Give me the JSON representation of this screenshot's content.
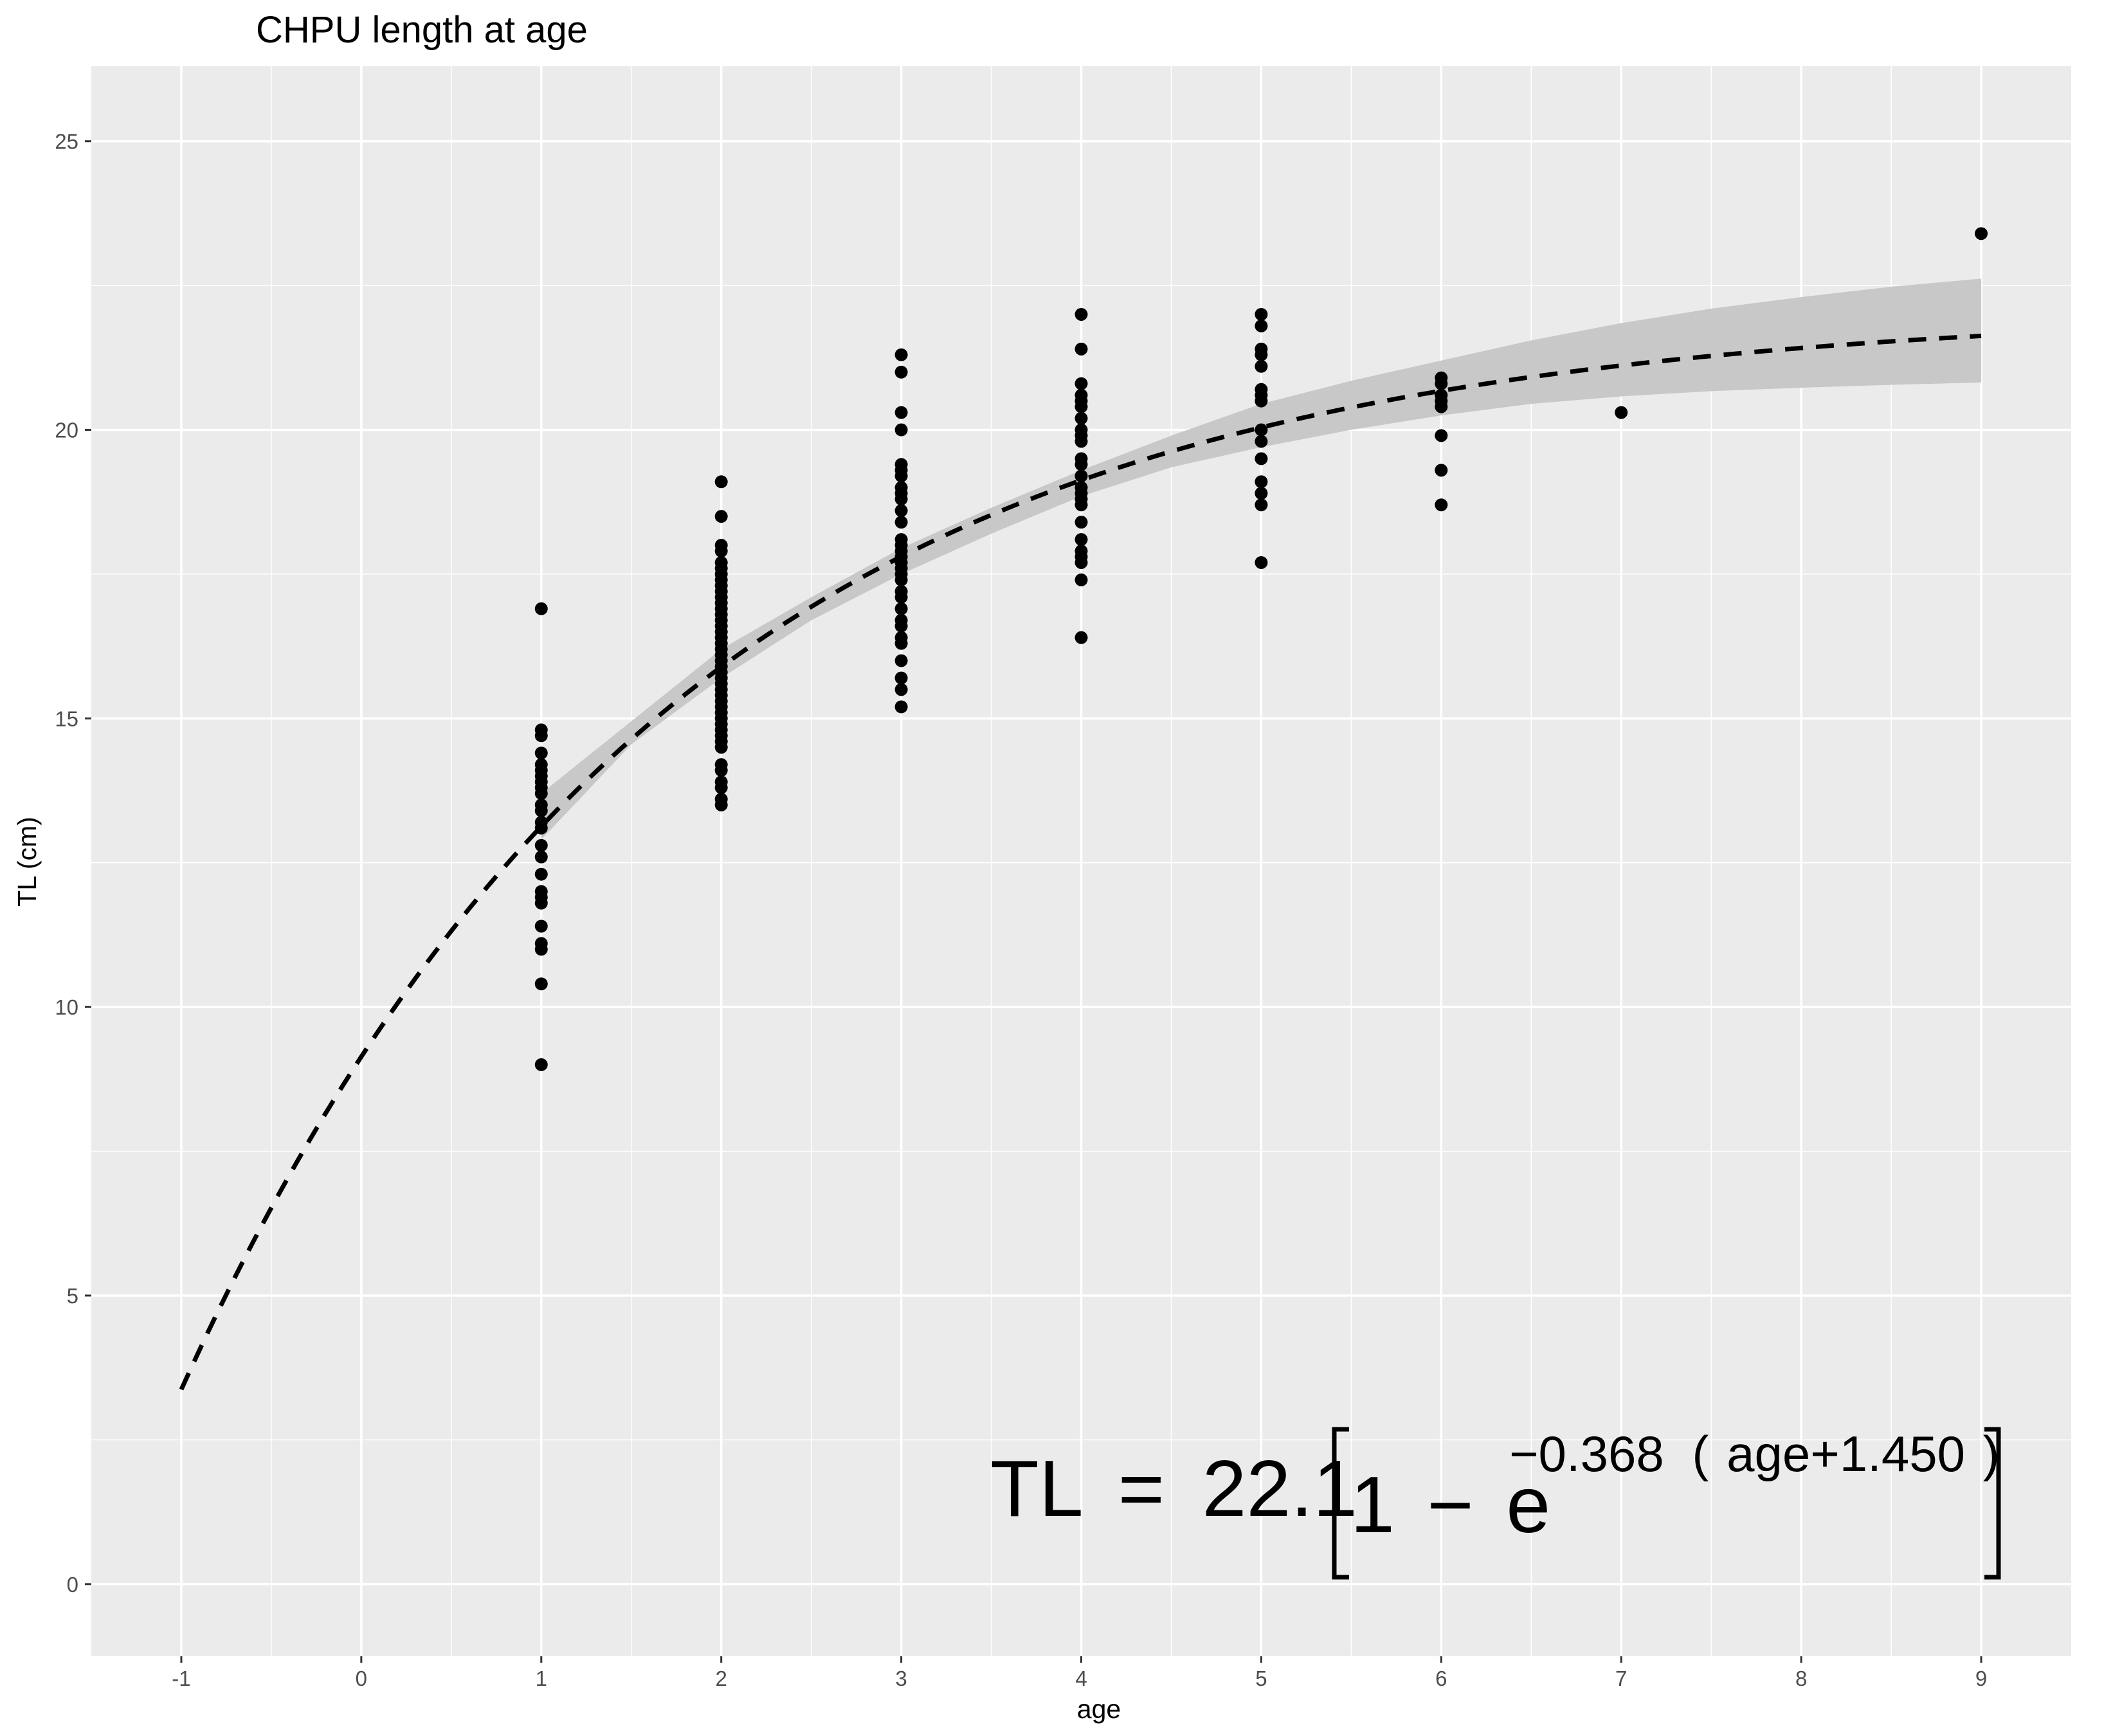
{
  "chart_data": {
    "type": "scatter",
    "title": "CHPU length at age",
    "xlabel": "age",
    "ylabel": "TL (cm)",
    "xlim": [
      -1.5,
      9.5
    ],
    "ylim": [
      -1.25,
      26.3
    ],
    "x_ticks": [
      -1,
      0,
      1,
      2,
      3,
      4,
      5,
      6,
      7,
      8,
      9
    ],
    "x_tick_labels": [
      "-1",
      "0",
      "1",
      "2",
      "3",
      "4",
      "5",
      "6",
      "7",
      "8",
      "9"
    ],
    "y_ticks": [
      0,
      5,
      10,
      15,
      20,
      25
    ],
    "y_tick_labels": [
      "0",
      "5",
      "10",
      "15",
      "20",
      "25"
    ],
    "grid": true,
    "colors": {
      "panel": "#ebebeb",
      "grid": "#ffffff",
      "points": "#000000",
      "band": "#c8c8c8",
      "curve": "#000000"
    },
    "fit": {
      "model": "von Bertalanffy",
      "Linf": 22.1,
      "K": 0.368,
      "t0": -1.45,
      "curve_range": [
        -1,
        9
      ],
      "ci_range": [
        1,
        9
      ],
      "ci_lower": [
        [
          1,
          12.9
        ],
        [
          1.5,
          14.55
        ],
        [
          2,
          15.7
        ],
        [
          2.5,
          16.7
        ],
        [
          3,
          17.5
        ],
        [
          3.5,
          18.2
        ],
        [
          4,
          18.85
        ],
        [
          4.5,
          19.35
        ],
        [
          5,
          19.7
        ],
        [
          5.5,
          20.0
        ],
        [
          6,
          20.25
        ],
        [
          6.5,
          20.45
        ],
        [
          7,
          20.58
        ],
        [
          7.5,
          20.67
        ],
        [
          8,
          20.73
        ],
        [
          8.5,
          20.78
        ],
        [
          9,
          20.82
        ]
      ],
      "ci_upper": [
        [
          1,
          13.7
        ],
        [
          1.5,
          14.95
        ],
        [
          2,
          16.2
        ],
        [
          2.5,
          17.1
        ],
        [
          3,
          17.95
        ],
        [
          3.5,
          18.65
        ],
        [
          4,
          19.3
        ],
        [
          4.5,
          19.9
        ],
        [
          5,
          20.45
        ],
        [
          5.5,
          20.85
        ],
        [
          6,
          21.2
        ],
        [
          6.5,
          21.55
        ],
        [
          7,
          21.85
        ],
        [
          7.5,
          22.1
        ],
        [
          8,
          22.3
        ],
        [
          8.5,
          22.48
        ],
        [
          9,
          22.62
        ]
      ]
    },
    "equation": {
      "lhs": "TL",
      "eq": "=",
      "linf": "22.1",
      "one": "1",
      "minus": "−",
      "e": "e",
      "exp_coef": "−0.368",
      "exp_open": "(",
      "exp_body": "age+1.450",
      "exp_close": ")"
    },
    "points": [
      [
        1,
        16.9
      ],
      [
        1,
        14.8
      ],
      [
        1,
        14.7
      ],
      [
        1,
        14.4
      ],
      [
        1,
        14.2
      ],
      [
        1,
        14.1
      ],
      [
        1,
        14.0
      ],
      [
        1,
        13.9
      ],
      [
        1,
        13.8
      ],
      [
        1,
        13.7
      ],
      [
        1,
        13.5
      ],
      [
        1,
        13.4
      ],
      [
        1,
        13.2
      ],
      [
        1,
        13.1
      ],
      [
        1,
        12.8
      ],
      [
        1,
        12.6
      ],
      [
        1,
        12.3
      ],
      [
        1,
        12.0
      ],
      [
        1,
        11.9
      ],
      [
        1,
        11.8
      ],
      [
        1,
        11.4
      ],
      [
        1,
        11.1
      ],
      [
        1,
        11.0
      ],
      [
        1,
        10.4
      ],
      [
        1,
        9.0
      ],
      [
        2,
        19.1
      ],
      [
        2,
        18.5
      ],
      [
        2,
        18.0
      ],
      [
        2,
        17.9
      ],
      [
        2,
        17.7
      ],
      [
        2,
        17.6
      ],
      [
        2,
        17.5
      ],
      [
        2,
        17.4
      ],
      [
        2,
        17.3
      ],
      [
        2,
        17.2
      ],
      [
        2,
        17.1
      ],
      [
        2,
        17.0
      ],
      [
        2,
        16.9
      ],
      [
        2,
        16.8
      ],
      [
        2,
        16.7
      ],
      [
        2,
        16.6
      ],
      [
        2,
        16.5
      ],
      [
        2,
        16.4
      ],
      [
        2,
        16.3
      ],
      [
        2,
        16.2
      ],
      [
        2,
        16.1
      ],
      [
        2,
        16.0
      ],
      [
        2,
        15.9
      ],
      [
        2,
        15.8
      ],
      [
        2,
        15.7
      ],
      [
        2,
        15.6
      ],
      [
        2,
        15.5
      ],
      [
        2,
        15.4
      ],
      [
        2,
        15.3
      ],
      [
        2,
        15.2
      ],
      [
        2,
        15.1
      ],
      [
        2,
        15.0
      ],
      [
        2,
        14.9
      ],
      [
        2,
        14.8
      ],
      [
        2,
        14.7
      ],
      [
        2,
        14.6
      ],
      [
        2,
        14.5
      ],
      [
        2,
        14.2
      ],
      [
        2,
        14.1
      ],
      [
        2,
        13.9
      ],
      [
        2,
        13.8
      ],
      [
        2,
        13.6
      ],
      [
        2,
        13.5
      ],
      [
        3,
        21.3
      ],
      [
        3,
        21.0
      ],
      [
        3,
        20.3
      ],
      [
        3,
        20.0
      ],
      [
        3,
        19.4
      ],
      [
        3,
        19.3
      ],
      [
        3,
        19.2
      ],
      [
        3,
        19.0
      ],
      [
        3,
        18.9
      ],
      [
        3,
        18.8
      ],
      [
        3,
        18.6
      ],
      [
        3,
        18.4
      ],
      [
        3,
        18.1
      ],
      [
        3,
        18.0
      ],
      [
        3,
        17.9
      ],
      [
        3,
        17.8
      ],
      [
        3,
        17.7
      ],
      [
        3,
        17.6
      ],
      [
        3,
        17.5
      ],
      [
        3,
        17.4
      ],
      [
        3,
        17.2
      ],
      [
        3,
        17.1
      ],
      [
        3,
        16.9
      ],
      [
        3,
        16.7
      ],
      [
        3,
        16.6
      ],
      [
        3,
        16.4
      ],
      [
        3,
        16.3
      ],
      [
        3,
        16.0
      ],
      [
        3,
        15.7
      ],
      [
        3,
        15.5
      ],
      [
        3,
        15.2
      ],
      [
        4,
        22.0
      ],
      [
        4,
        21.4
      ],
      [
        4,
        20.8
      ],
      [
        4,
        20.6
      ],
      [
        4,
        20.5
      ],
      [
        4,
        20.4
      ],
      [
        4,
        20.2
      ],
      [
        4,
        20.0
      ],
      [
        4,
        19.9
      ],
      [
        4,
        19.8
      ],
      [
        4,
        19.5
      ],
      [
        4,
        19.4
      ],
      [
        4,
        19.2
      ],
      [
        4,
        19.0
      ],
      [
        4,
        18.9
      ],
      [
        4,
        18.8
      ],
      [
        4,
        18.7
      ],
      [
        4,
        18.4
      ],
      [
        4,
        18.1
      ],
      [
        4,
        17.9
      ],
      [
        4,
        17.8
      ],
      [
        4,
        17.7
      ],
      [
        4,
        17.4
      ],
      [
        4,
        16.4
      ],
      [
        5,
        22.0
      ],
      [
        5,
        21.8
      ],
      [
        5,
        21.4
      ],
      [
        5,
        21.3
      ],
      [
        5,
        21.1
      ],
      [
        5,
        20.7
      ],
      [
        5,
        20.6
      ],
      [
        5,
        20.5
      ],
      [
        5,
        20.0
      ],
      [
        5,
        19.8
      ],
      [
        5,
        19.5
      ],
      [
        5,
        19.1
      ],
      [
        5,
        18.9
      ],
      [
        5,
        18.7
      ],
      [
        5,
        17.7
      ],
      [
        6,
        20.9
      ],
      [
        6,
        20.8
      ],
      [
        6,
        20.6
      ],
      [
        6,
        20.5
      ],
      [
        6,
        20.4
      ],
      [
        6,
        19.9
      ],
      [
        6,
        19.3
      ],
      [
        6,
        18.7
      ],
      [
        7,
        20.3
      ],
      [
        9,
        23.4
      ]
    ]
  }
}
